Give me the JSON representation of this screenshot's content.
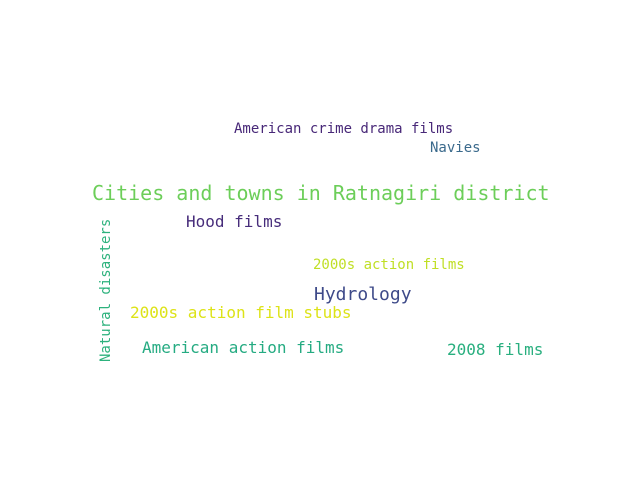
{
  "words": [
    {
      "text": "American crime drama films",
      "color": "#482878"
    },
    {
      "text": "Navies",
      "color": "#3b6a8c"
    },
    {
      "text": "Cities and towns in Ratnagiri district",
      "color": "#6cce59"
    },
    {
      "text": "Hood films",
      "color": "#472d7b"
    },
    {
      "text": "2000s action films",
      "color": "#c0df25"
    },
    {
      "text": "Hydrology",
      "color": "#3e4a89"
    },
    {
      "text": "2000s action film stubs",
      "color": "#dde318"
    },
    {
      "text": "American action films",
      "color": "#25ab82"
    },
    {
      "text": "2008 films",
      "color": "#29af7f"
    },
    {
      "text": "Natural disasters",
      "color": "#2db27d"
    }
  ]
}
